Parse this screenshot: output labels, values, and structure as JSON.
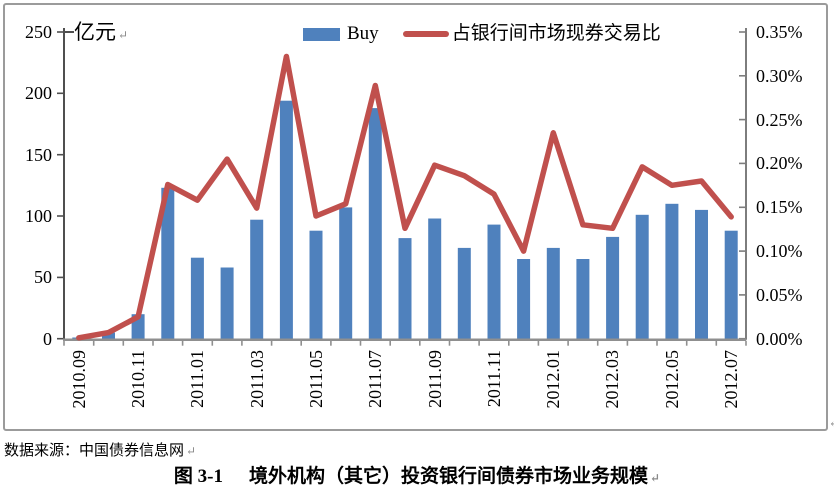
{
  "marks": {
    "return_mark": "↵"
  },
  "chart_data": {
    "type": "bar+line combo (dual axis)",
    "categories": [
      "2010.09",
      "2010.10",
      "2010.11",
      "2010.12",
      "2011.01",
      "2011.02",
      "2011.03",
      "2011.04",
      "2011.05",
      "2011.06",
      "2011.07",
      "2011.08",
      "2011.09",
      "2011.10",
      "2011.11",
      "2011.12",
      "2012.01",
      "2012.02",
      "2012.03",
      "2012.04",
      "2012.05",
      "2012.06",
      "2012.07"
    ],
    "x_tick_labels": [
      "2010.09",
      "2010.11",
      "2011.01",
      "2011.03",
      "2011.05",
      "2011.07",
      "2011.09",
      "2011.11",
      "2012.01",
      "2012.03",
      "2012.05",
      "2012.07"
    ],
    "series": [
      {
        "name": "Buy",
        "type": "bar",
        "axis": "left",
        "color": "#4F81BD",
        "values": [
          1,
          5,
          20,
          123,
          66,
          58,
          97,
          194,
          88,
          107,
          188,
          82,
          98,
          74,
          93,
          65,
          74,
          65,
          83,
          101,
          110,
          105,
          88
        ]
      },
      {
        "name": "占银行间市场现券交易比",
        "type": "line",
        "axis": "right",
        "color": "#C0504D",
        "values_percent": [
          0.001,
          0.007,
          0.025,
          0.176,
          0.158,
          0.205,
          0.149,
          0.322,
          0.14,
          0.154,
          0.289,
          0.126,
          0.198,
          0.186,
          0.165,
          0.1,
          0.235,
          0.13,
          0.126,
          0.196,
          0.175,
          0.18,
          0.139
        ]
      }
    ],
    "left_axis": {
      "title": "亿元",
      "min": 0,
      "max": 250,
      "tick_labels": [
        "250",
        "200",
        "150",
        "100",
        "50",
        "0"
      ]
    },
    "right_axis": {
      "min": 0,
      "max": 0.35,
      "tick_labels": [
        "0.35%",
        "0.30%",
        "0.25%",
        "0.20%",
        "0.15%",
        "0.10%",
        "0.05%",
        "0.00%"
      ]
    },
    "legend_position": "top",
    "grid": false
  },
  "footer": {
    "source": "数据来源：中国债券信息网",
    "figure_number": "图 3-1",
    "caption": "境外机构（其它）投资银行间债券市场业务规模"
  }
}
